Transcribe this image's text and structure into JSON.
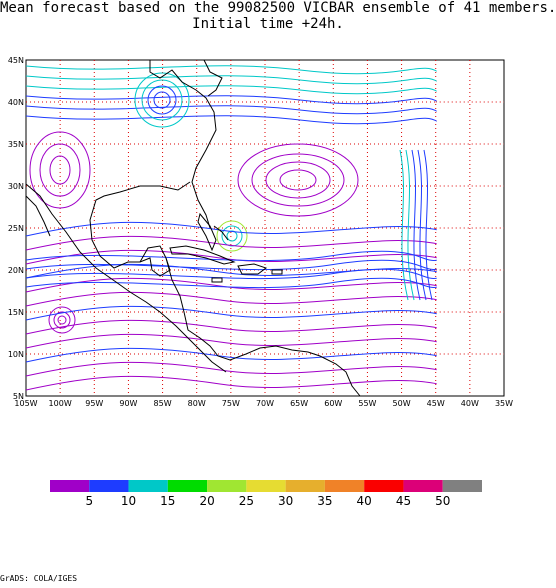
{
  "title": {
    "line1": "Mean forecast based on the 99082500 VICBAR ensemble of 41 members.",
    "line2": "Initial time +24h."
  },
  "map": {
    "lat_labels": [
      "45N",
      "40N",
      "35N",
      "30N",
      "25N",
      "20N",
      "15N",
      "10N",
      "5N"
    ],
    "lon_labels": [
      "105W",
      "100W",
      "95W",
      "90W",
      "85W",
      "80W",
      "75W",
      "70W",
      "65W",
      "60W",
      "55W",
      "50W",
      "45W",
      "40W",
      "35W"
    ],
    "grid_color": "#dd0000",
    "land_color": "#000000",
    "field": "wind streamlines"
  },
  "colorbar": {
    "labels": [
      "5",
      "10",
      "15",
      "20",
      "25",
      "30",
      "35",
      "40",
      "45",
      "50"
    ],
    "colors": [
      "#a000c8",
      "#1e3cff",
      "#00c8c8",
      "#00dc00",
      "#a0e632",
      "#e6dc32",
      "#e6af2d",
      "#f08228",
      "#fa0000",
      "#dc0078",
      "#808080"
    ]
  },
  "footer": "GrADS: COLA/IGES"
}
